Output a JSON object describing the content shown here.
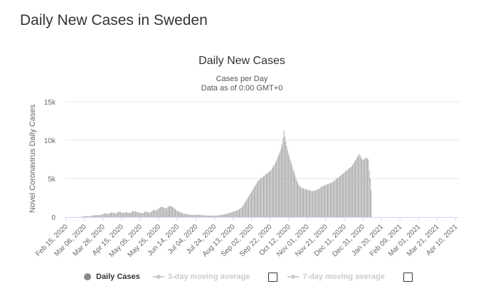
{
  "page_heading": "Daily New Cases in Sweden",
  "colors": {
    "bars": "#a8a8a8",
    "axis": "#ccd6eb",
    "grid": "#e6e6e6",
    "legend_active": "#888888",
    "legend_inactive": "#cccccc"
  },
  "legend": {
    "items": [
      {
        "label": "Daily Cases",
        "state": "active"
      },
      {
        "label": "3-day moving average",
        "state": "inactive",
        "checkbox": "unchecked"
      },
      {
        "label": "7-day moving average",
        "state": "inactive",
        "checkbox": "unchecked"
      }
    ]
  },
  "chart_data": {
    "type": "bar",
    "title": "Daily New Cases",
    "subtitle": [
      "Cases per Day",
      "Data as of 0:00 GMT+0"
    ],
    "xlabel": "",
    "ylabel": "Novel Coronavirus Daily Cases",
    "ylim": [
      0,
      15000
    ],
    "y_ticks": [
      0,
      5000,
      10000,
      15000
    ],
    "y_tick_labels": [
      "0",
      "5k",
      "10k",
      "15k"
    ],
    "grid": true,
    "legend_position": "bottom",
    "x_start": "2020-02-15",
    "x_tick_labels": [
      "Feb 15, 2020",
      "Mar 06, 2020",
      "Mar 26, 2020",
      "Apr 15, 2020",
      "May 05, 2020",
      "May 25, 2020",
      "Jun 14, 2020",
      "Jul 04, 2020",
      "Jul 24, 2020",
      "Aug 13, 2020",
      "Sep 02, 2020",
      "Sep 22, 2020",
      "Oct 12, 2020",
      "Nov 01, 2020",
      "Nov 21, 2020",
      "Dec 11, 2020",
      "Dec 31, 2020",
      "Jan 20, 2021",
      "Feb 09, 2021",
      "Mar 01, 2021",
      "Mar 21, 2021",
      "Apr 10, 2021"
    ],
    "series": [
      {
        "name": "Daily Cases",
        "values": [
          0,
          0,
          0,
          0,
          0,
          0,
          0,
          0,
          0,
          0,
          0,
          0,
          3,
          10,
          15,
          20,
          30,
          40,
          60,
          80,
          100,
          120,
          150,
          130,
          110,
          90,
          120,
          150,
          180,
          200,
          220,
          250,
          260,
          270,
          250,
          220,
          240,
          270,
          300,
          350,
          400,
          450,
          480,
          500,
          450,
          400,
          420,
          480,
          550,
          600,
          620,
          580,
          500,
          450,
          500,
          560,
          620,
          680,
          700,
          650,
          600,
          550,
          520,
          560,
          620,
          650,
          600,
          550,
          520,
          540,
          600,
          680,
          740,
          800,
          760,
          700,
          650,
          640,
          620,
          600,
          560,
          520,
          500,
          540,
          600,
          680,
          740,
          700,
          650,
          600,
          560,
          600,
          700,
          800,
          900,
          950,
          900,
          850,
          900,
          1000,
          1100,
          1200,
          1300,
          1350,
          1300,
          1250,
          1200,
          1150,
          1100,
          1200,
          1300,
          1400,
          1500,
          1450,
          1350,
          1300,
          1250,
          1100,
          1000,
          900,
          800,
          750,
          700,
          650,
          600,
          550,
          500,
          450,
          420,
          400,
          380,
          360,
          340,
          320,
          300,
          290,
          280,
          270,
          260,
          260,
          270,
          280,
          300,
          290,
          280,
          270,
          260,
          250,
          240,
          230,
          220,
          210,
          200,
          195,
          190,
          185,
          180,
          175,
          170,
          175,
          180,
          185,
          190,
          200,
          210,
          220,
          240,
          260,
          280,
          300,
          330,
          360,
          390,
          420,
          450,
          480,
          520,
          560,
          600,
          640,
          680,
          720,
          760,
          800,
          850,
          900,
          960,
          1020,
          1100,
          1200,
          1350,
          1500,
          1700,
          1900,
          2100,
          2300,
          2500,
          2700,
          2900,
          3100,
          3300,
          3500,
          3700,
          3900,
          4100,
          4300,
          4500,
          4700,
          4800,
          4900,
          5000,
          5100,
          5200,
          5300,
          5400,
          5500,
          5600,
          5700,
          5800,
          5900,
          6000,
          6100,
          6300,
          6500,
          6700,
          6900,
          7100,
          7400,
          7700,
          8000,
          8300,
          8600,
          9000,
          9500,
          10300,
          11300,
          10500,
          9800,
          9200,
          8700,
          8200,
          7800,
          7400,
          7000,
          6600,
          6200,
          5800,
          5400,
          5000,
          4700,
          4400,
          4200,
          4000,
          3900,
          3800,
          3800,
          3700,
          3700,
          3600,
          3600,
          3600,
          3500,
          3500,
          3500,
          3400,
          3400,
          3400,
          3400,
          3400,
          3500,
          3500,
          3600,
          3600,
          3700,
          3800,
          3900,
          4000,
          4000,
          4100,
          4100,
          4200,
          4200,
          4300,
          4300,
          4400,
          4400,
          4500,
          4500,
          4600,
          4700,
          4800,
          4900,
          5000,
          5100,
          5200,
          5300,
          5400,
          5500,
          5600,
          5700,
          5800,
          5900,
          6000,
          6100,
          6200,
          6300,
          6400,
          6500,
          6600,
          6800,
          7000,
          7200,
          7400,
          7600,
          7800,
          8000,
          8200,
          8000,
          7800,
          7600,
          7400,
          7500,
          7600,
          7700,
          7700,
          7600,
          7500,
          6000,
          5000,
          3500
        ]
      }
    ]
  }
}
